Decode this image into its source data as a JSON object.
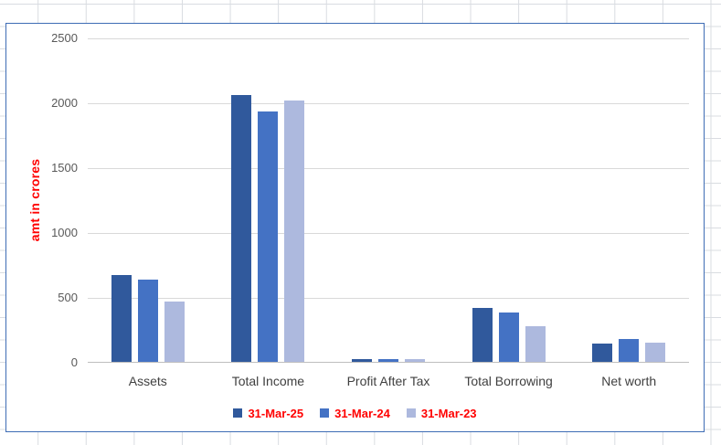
{
  "app": {
    "kind": "spreadsheet-embedded-chart",
    "chart_border_color": "#3E6CB5",
    "chart_background": "#FFFFFF"
  },
  "chart_data": {
    "type": "bar",
    "title": "",
    "categories": [
      "Assets",
      "Total Income",
      "Profit After Tax",
      "Total Borrowing",
      "Net worth"
    ],
    "series": [
      {
        "name": "31-Mar-25",
        "color": "#30599C",
        "values": [
          675,
          2065,
          28,
          425,
          145
        ]
      },
      {
        "name": "31-Mar-24",
        "color": "#4472C4",
        "values": [
          640,
          1940,
          26,
          390,
          185
        ]
      },
      {
        "name": "31-Mar-23",
        "color": "#ADB9DE",
        "values": [
          475,
          2020,
          26,
          280,
          155
        ]
      }
    ],
    "xlabel": "",
    "ylabel": "amt in crores",
    "ylabel_color": "#FF0000",
    "legend_text_color": "#FF0000",
    "ylim": [
      0,
      2500
    ],
    "yticks": [
      0,
      500,
      1000,
      1500,
      2000,
      2500
    ],
    "grid": true,
    "gridline_color": "#D9D9D9",
    "axis_tick_color": "#595959",
    "category_label_color": "#404040",
    "legend_position": "bottom"
  }
}
